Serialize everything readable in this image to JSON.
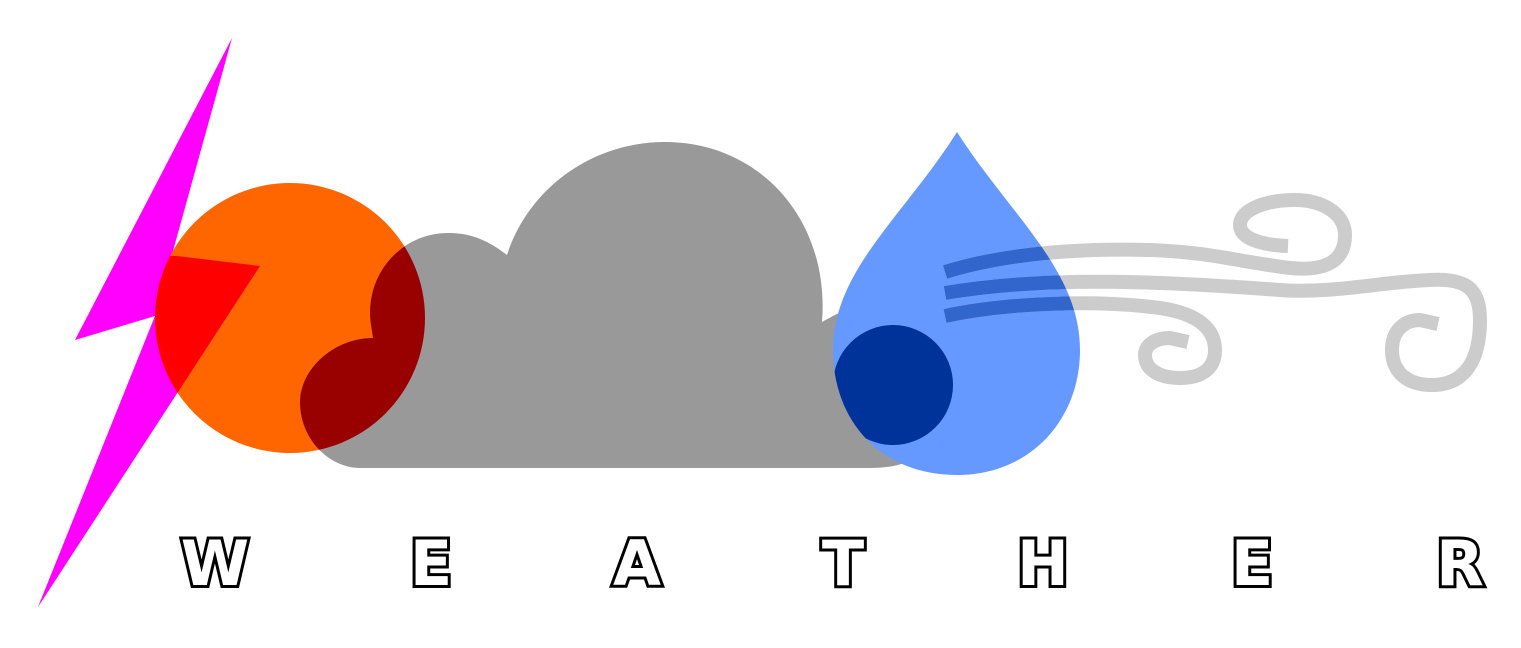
{
  "title": {
    "letters": [
      "W",
      "E",
      "A",
      "T",
      "H",
      "E",
      "R"
    ]
  },
  "colors": {
    "background": "#ffffff",
    "lightning": "#ff00ff",
    "lightning_overlap": "#ff0000",
    "sun": "#ff6600",
    "sun_overlap": "#990000",
    "cloud": "#999999",
    "drop": "#6699ff",
    "drop_overlap": "#003399",
    "wind": "#cccccc",
    "wind_overlap": "#3366cc",
    "letter_fill": "#ffffff",
    "letter_stroke": "#000000"
  },
  "icons": [
    "lightning-icon",
    "sun-icon",
    "cloud-icon",
    "raindrop-icon",
    "wind-icon"
  ]
}
